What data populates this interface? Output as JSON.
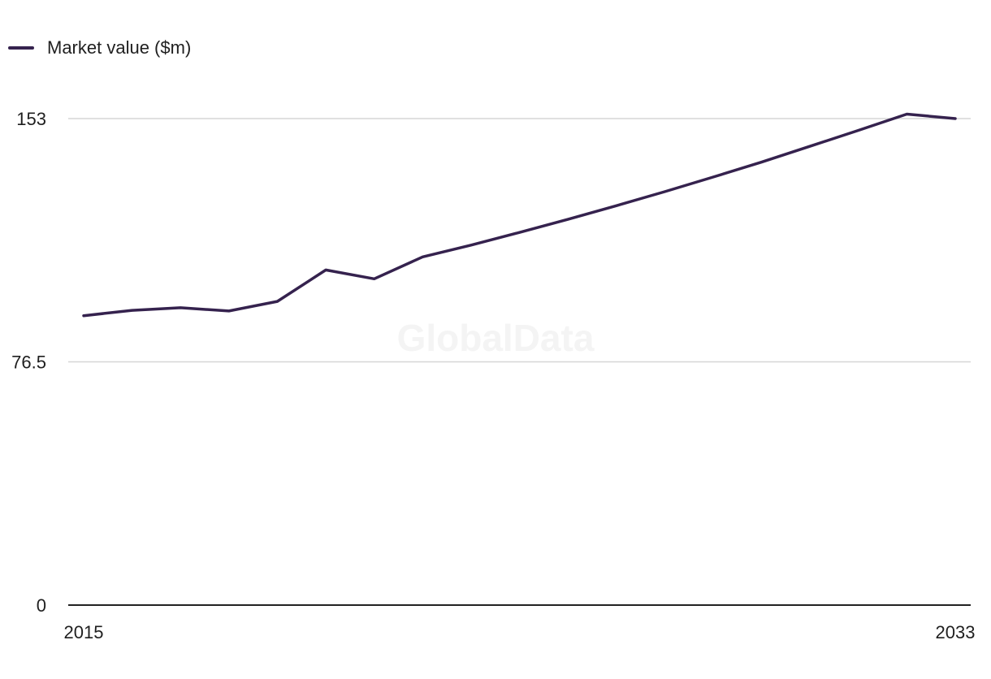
{
  "watermark": "GlobalData",
  "colors": {
    "line": "#35224e",
    "grid": "#d6d6d6",
    "axis": "#222222"
  },
  "chart_data": {
    "type": "line",
    "title": "",
    "xlabel": "",
    "ylabel": "",
    "x": [
      2015,
      2016,
      2017,
      2018,
      2019,
      2020,
      2021,
      2022,
      2023,
      2024,
      2025,
      2026,
      2027,
      2028,
      2029,
      2030,
      2031,
      2032,
      2033
    ],
    "series": [
      {
        "name": "Market value ($m)",
        "values": [
          91.0,
          92.7,
          93.5,
          92.5,
          95.5,
          105.4,
          102.6,
          109.5,
          113.2,
          117.2,
          121.3,
          125.6,
          130.0,
          134.6,
          139.3,
          144.3,
          149.3,
          154.4,
          153.0
        ]
      }
    ],
    "ylim": [
      0,
      153
    ],
    "yticks": [
      "0",
      "76.5",
      "153"
    ],
    "xticks": [
      "2015",
      "2033"
    ],
    "legend_position": "top-left",
    "grid": true
  }
}
